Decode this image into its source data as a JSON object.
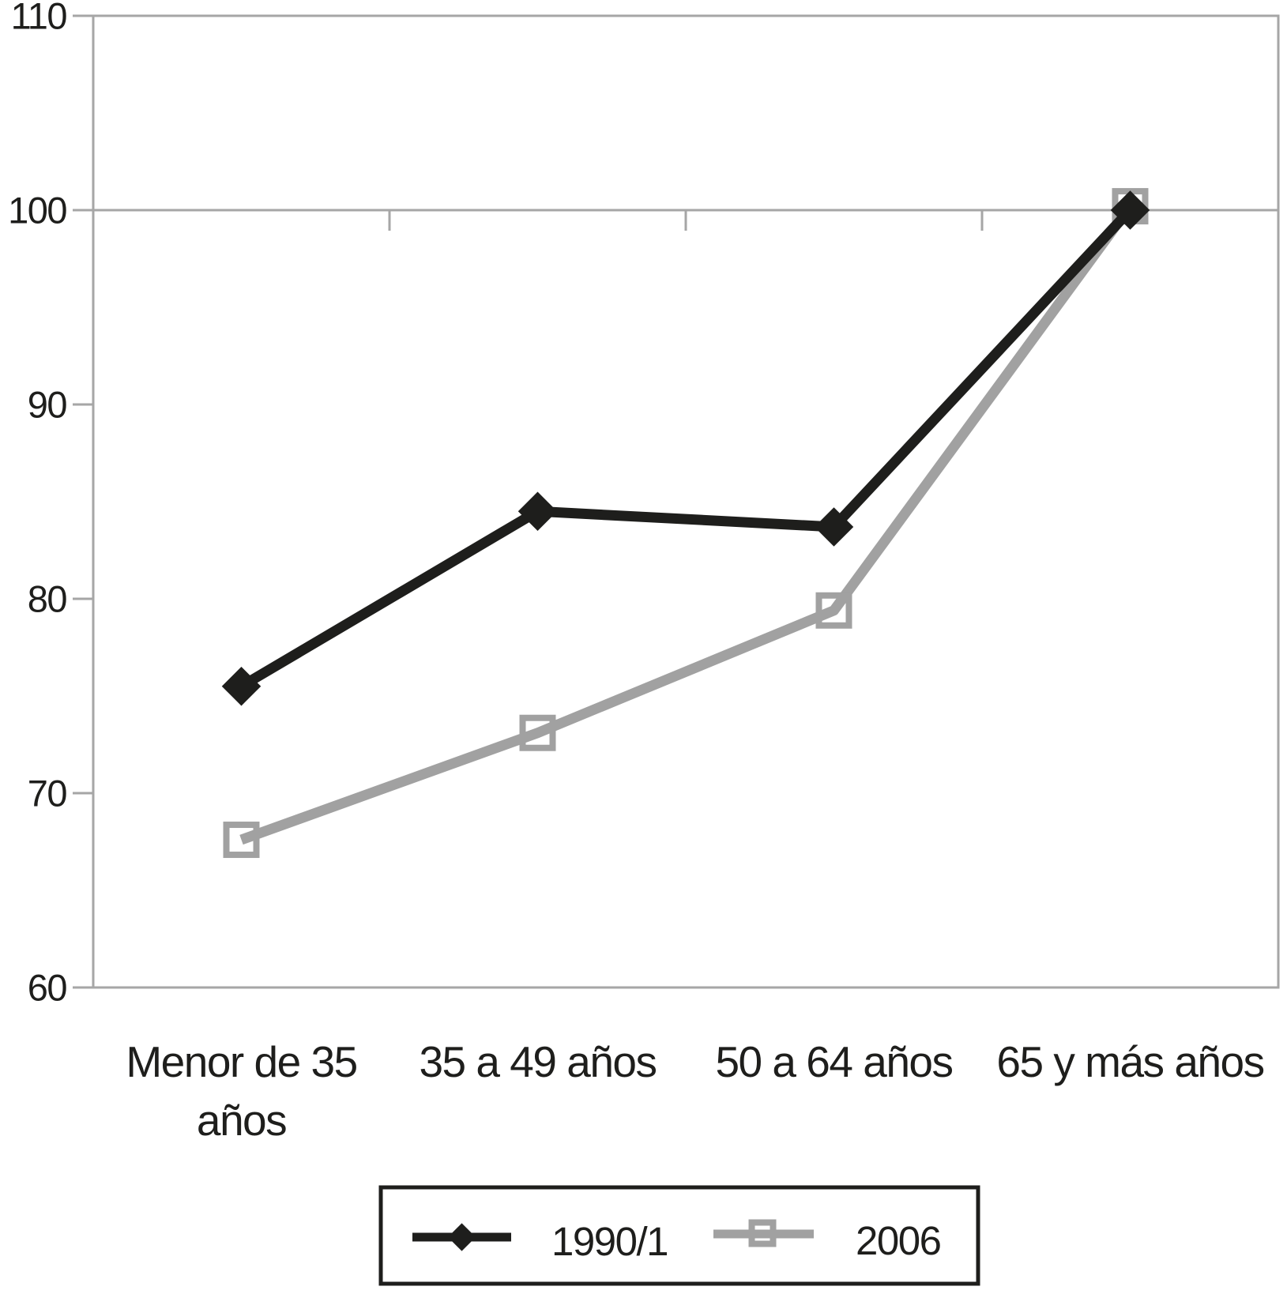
{
  "chart_data": {
    "type": "line",
    "title": "",
    "xlabel": "",
    "ylabel": "",
    "categories": [
      "Menor de 35 años",
      "35 a 49 años",
      "50 a 64 años",
      "65 y más años"
    ],
    "category_label_lines": [
      [
        "Menor de 35",
        "años"
      ],
      [
        "35 a 49 años"
      ],
      [
        "50 a 64 años"
      ],
      [
        "65 y más años"
      ]
    ],
    "series": [
      {
        "name": "1990/1",
        "marker": "filled-diamond",
        "color": "#1e1e1c",
        "values": [
          75.5,
          84.5,
          83.7,
          100
        ]
      },
      {
        "name": "2006",
        "marker": "open-square",
        "color": "#a1a1a1",
        "values": [
          67.6,
          73.1,
          79.4,
          100.2
        ]
      }
    ],
    "ylim": [
      60,
      110
    ],
    "yticks": [
      "60",
      "70",
      "80",
      "90",
      "100",
      "110"
    ],
    "ytick_values": [
      60,
      70,
      80,
      90,
      100,
      110
    ],
    "category_axis_crosses_at": 100,
    "gridlines": "none (plot border + category axis line at 100 with boundary ticks)",
    "legend_position": "bottom-center",
    "legend_border_color": "#1e1e1c",
    "axis_color": "#a6a6a6",
    "background_color": "#ffffff"
  }
}
